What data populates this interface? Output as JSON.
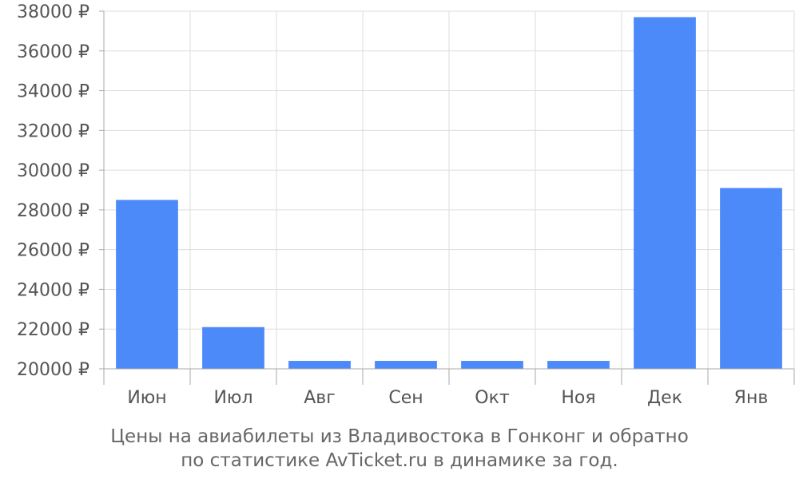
{
  "chart_data": {
    "type": "bar",
    "categories": [
      "Июн",
      "Июл",
      "Авг",
      "Сен",
      "Окт",
      "Ноя",
      "Дек",
      "Янв"
    ],
    "values": [
      28500,
      22100,
      20400,
      20400,
      20400,
      20400,
      37700,
      29100
    ],
    "ylim": [
      20000,
      38000
    ],
    "yticks": [
      20000,
      22000,
      24000,
      26000,
      28000,
      30000,
      32000,
      34000,
      36000,
      38000
    ],
    "y_unit": "₽",
    "grid": true,
    "bar_color": "#4d8af9"
  },
  "caption": {
    "line1": "Цены на авиабилеты из Владивостока в Гонконг и обратно",
    "line2": "по статистике AvTicket.ru в динамике за год."
  }
}
